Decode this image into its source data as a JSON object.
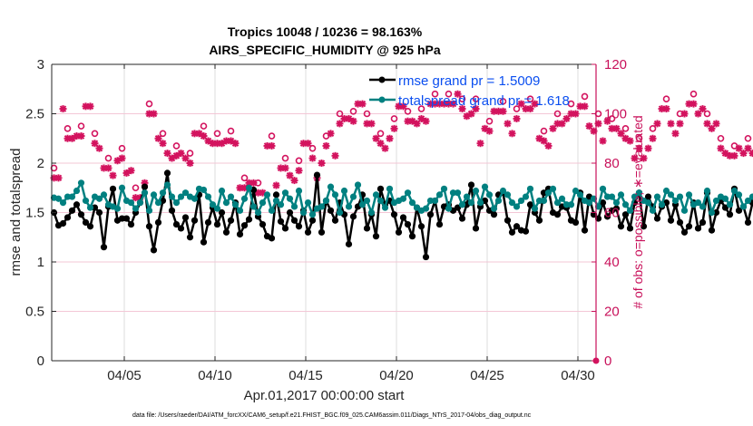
{
  "chart_data": {
    "type": "line",
    "title": [
      "Tropics 10048 / 10236 = 98.163%",
      "AIRS_SPECIFIC_HUMIDITY @ 925 hPa"
    ],
    "xlabel": "Apr.01,2017 00:00:00 start",
    "ylabel": "rmse and totalspread",
    "y2label": "# of obs: o=possible; ∗=evaluated",
    "footnote": "data file: /Users/raeder/DAI/ATM_forcXX/CAM6_setup/f.e21.FHIST_BGC.f09_025.CAM6assim.011/Diags_NTrS_2017-04/obs_diag_output.nc",
    "xlim_days": [
      1,
      31
    ],
    "ylim": [
      0,
      3
    ],
    "y2lim": [
      0,
      120
    ],
    "xticks": [
      {
        "day": 5,
        "label": "04/05"
      },
      {
        "day": 10,
        "label": "04/10"
      },
      {
        "day": 15,
        "label": "04/15"
      },
      {
        "day": 20,
        "label": "04/20"
      },
      {
        "day": 25,
        "label": "04/25"
      },
      {
        "day": 30,
        "label": "04/30"
      }
    ],
    "yticks": [
      {
        "value": 0,
        "label": "0"
      },
      {
        "value": 0.5,
        "label": "0.5"
      },
      {
        "value": 1,
        "label": "1"
      },
      {
        "value": 1.5,
        "label": "1.5"
      },
      {
        "value": 2,
        "label": "2"
      },
      {
        "value": 2.5,
        "label": "2.5"
      },
      {
        "value": 3,
        "label": "3"
      }
    ],
    "y2ticks": [
      {
        "value": 0,
        "label": "0"
      },
      {
        "value": 20,
        "label": "20"
      },
      {
        "value": 40,
        "label": "40"
      },
      {
        "value": 60,
        "label": "60"
      },
      {
        "value": 80,
        "label": "80"
      },
      {
        "value": 100,
        "label": "100"
      },
      {
        "value": 120,
        "label": "120"
      }
    ],
    "grid": "x-vertical gray, y2-horizontal pink",
    "legend_position": "top-right",
    "colors": {
      "rmse": "#000000",
      "totalspread": "#008080",
      "obs": "#d3135e",
      "legend_text": "#0a4ef0"
    },
    "series": [
      {
        "name": "rmse grand pr = 1.5009",
        "key": "rmse",
        "x_start_day": 1.125,
        "x_step_day": 0.25,
        "values": [
          1.5,
          1.37,
          1.39,
          1.45,
          1.52,
          1.58,
          1.48,
          1.4,
          1.36,
          1.55,
          1.5,
          1.15,
          1.56,
          1.74,
          1.42,
          1.44,
          1.44,
          1.38,
          1.5,
          1.6,
          1.76,
          1.36,
          1.12,
          1.4,
          1.62,
          1.9,
          1.52,
          1.38,
          1.34,
          1.45,
          1.25,
          1.42,
          1.68,
          1.2,
          1.4,
          1.55,
          1.38,
          1.5,
          1.3,
          1.42,
          1.6,
          1.28,
          1.37,
          1.43,
          1.73,
          1.46,
          1.38,
          1.26,
          1.24,
          1.68,
          1.41,
          1.34,
          1.5,
          1.42,
          1.36,
          1.52,
          1.3,
          1.42,
          1.88,
          1.3,
          1.62,
          1.52,
          1.42,
          1.6,
          1.48,
          1.18,
          1.46,
          1.56,
          1.68,
          1.34,
          1.48,
          1.26,
          1.74,
          1.58,
          1.62,
          1.48,
          1.3,
          1.45,
          1.38,
          1.26,
          1.55,
          1.36,
          1.05,
          1.48,
          1.62,
          1.38,
          1.56,
          1.58,
          1.52,
          1.55,
          1.44,
          1.58,
          1.78,
          1.34,
          1.56,
          1.62,
          1.52,
          1.48,
          1.68,
          1.7,
          1.42,
          1.3,
          1.36,
          1.32,
          1.31,
          1.58,
          1.5,
          1.42,
          1.7,
          1.74,
          1.5,
          1.48,
          1.56,
          1.55,
          1.42,
          1.4,
          1.7,
          1.32,
          1.66,
          1.48,
          1.44,
          1.6,
          1.46,
          1.52,
          1.54,
          1.36,
          1.48,
          1.34,
          1.6,
          1.7,
          1.36,
          1.66,
          1.56,
          1.44,
          1.56,
          1.6,
          1.42,
          1.58,
          1.4,
          1.3,
          1.36,
          1.6,
          1.34,
          1.4,
          1.7,
          1.32,
          1.5,
          1.62,
          1.55,
          1.48,
          1.74,
          1.52,
          1.56,
          1.4,
          1.6,
          1.68,
          1.58,
          1.62,
          1.5,
          1.44,
          1.56,
          1.4,
          1.68,
          1.44,
          1.38,
          1.5,
          1.32,
          1.26,
          1.55,
          1.4,
          1.48,
          1.62,
          1.44,
          1.34,
          1.58,
          1.6,
          1.52,
          1.32,
          1.3,
          1.34,
          1.42,
          1.55,
          1.44,
          1.36,
          1.6,
          1.28,
          1.56,
          1.45,
          1.62,
          1.34,
          1.6,
          1.52,
          1.65,
          1.44,
          1.58,
          1.3,
          1.6,
          1.4,
          1.48,
          1.32,
          1.32,
          1.46,
          1.36,
          1.6,
          1.55,
          1.58,
          1.48,
          1.5,
          1.42,
          1.34,
          1.52,
          1.58,
          1.4,
          1.3,
          1.66,
          1.52,
          1.6,
          1.42,
          1.48,
          1.22,
          1.53
        ]
      },
      {
        "name": "totalspread grand pr = 1.618",
        "key": "totalspread",
        "x_start_day": 1.125,
        "x_step_day": 0.25,
        "values": [
          1.65,
          1.64,
          1.6,
          1.66,
          1.66,
          1.72,
          1.8,
          1.62,
          1.55,
          1.66,
          1.64,
          1.68,
          1.58,
          1.56,
          1.54,
          1.75,
          1.62,
          1.6,
          1.54,
          1.6,
          1.7,
          1.52,
          1.68,
          1.6,
          1.7,
          1.78,
          1.66,
          1.6,
          1.66,
          1.7,
          1.66,
          1.64,
          1.74,
          1.73,
          1.66,
          1.58,
          1.54,
          1.72,
          1.6,
          1.66,
          1.58,
          1.52,
          1.64,
          1.75,
          1.56,
          1.5,
          1.6,
          1.68,
          1.52,
          1.62,
          1.58,
          1.7,
          1.64,
          1.56,
          1.72,
          1.5,
          1.6,
          1.48,
          1.54,
          1.56,
          1.62,
          1.76,
          1.68,
          1.5,
          1.72,
          1.56,
          1.66,
          1.78,
          1.58,
          1.62,
          1.5,
          1.68,
          1.62,
          1.55,
          1.74,
          1.6,
          1.62,
          1.64,
          1.7,
          1.6,
          1.55,
          1.52,
          1.54,
          1.62,
          1.62,
          1.68,
          1.74,
          1.54,
          1.7,
          1.7,
          1.58,
          1.66,
          1.6,
          1.72,
          1.6,
          1.76,
          1.68,
          1.54,
          1.62,
          1.72,
          1.68,
          1.6,
          1.56,
          1.62,
          1.66,
          1.74,
          1.54,
          1.62,
          1.62,
          1.7,
          1.74,
          1.6,
          1.64,
          1.58,
          1.58,
          1.72,
          1.68,
          1.62,
          1.6,
          1.64,
          1.56,
          1.74,
          1.66,
          1.66,
          1.6,
          1.68,
          1.58,
          1.52,
          1.66,
          1.7,
          1.62,
          1.6,
          1.52,
          1.66,
          1.58,
          1.72,
          1.68,
          1.62,
          1.66,
          1.52,
          1.68,
          1.58,
          1.6,
          1.56,
          1.72,
          1.5,
          1.62,
          1.66,
          1.64,
          1.58,
          1.72,
          1.68,
          1.56,
          1.62,
          1.66,
          1.74,
          1.62,
          1.52,
          1.68,
          1.74,
          1.64,
          1.6,
          1.74,
          1.62,
          1.68,
          1.62,
          1.56,
          1.68,
          1.72,
          1.64,
          1.56,
          1.6,
          1.7,
          1.62,
          1.64,
          1.7,
          1.58,
          1.64,
          1.62,
          1.68,
          1.62,
          1.64,
          1.66,
          1.58,
          1.68,
          1.6,
          1.7,
          1.62,
          1.66,
          1.48,
          1.7,
          1.6,
          1.72,
          1.6,
          1.7,
          1.54,
          1.66,
          1.7,
          1.62,
          1.6,
          1.68,
          1.64,
          1.56,
          1.68,
          1.72,
          1.68,
          1.6,
          1.74,
          1.62,
          1.66,
          1.58,
          1.62,
          1.72,
          1.56,
          1.76,
          1.62,
          1.7,
          1.78,
          1.5,
          1.56
        ]
      },
      {
        "name": "obs possible (o) / evaluated (*)",
        "key": "obs",
        "axis": "right",
        "x_start_day": 1.125,
        "x_step_day": 0.25,
        "possible": [
          74,
          74,
          102,
          90,
          90,
          91,
          91,
          103,
          103,
          88,
          86,
          78,
          78,
          75,
          81,
          82,
          76,
          77,
          66,
          66,
          72,
          100,
          100,
          90,
          88,
          84,
          82,
          83,
          84,
          82,
          80,
          92,
          92,
          91,
          89,
          88,
          88,
          88,
          89,
          89,
          88,
          70,
          70,
          72,
          72,
          68,
          68,
          87,
          87,
          71,
          78,
          78,
          75,
          73,
          77,
          88,
          88,
          82,
          74,
          80,
          87,
          92,
          83,
          96,
          98,
          98,
          97,
          104,
          104,
          96,
          96,
          90,
          88,
          86,
          90,
          94,
          103,
          103,
          97,
          97,
          96,
          98,
          97,
          104,
          104,
          104,
          104,
          104,
          104,
          108,
          102,
          99,
          100,
          102,
          88,
          94,
          93,
          101,
          101,
          101,
          96,
          92,
          98,
          104,
          102,
          102,
          104,
          90,
          89,
          87,
          94,
          96,
          96,
          98,
          100,
          100,
          103,
          103,
          95,
          93,
          96,
          89,
          97,
          94,
          94,
          92,
          90,
          89,
          82,
          86,
          82,
          86,
          90,
          96,
          102,
          102,
          96,
          92,
          96,
          100,
          104,
          104,
          100,
          102,
          96,
          94,
          96,
          86,
          84,
          83,
          83,
          86,
          84,
          86,
          84,
          78,
          80,
          84,
          82,
          84,
          80,
          84,
          86,
          88,
          90,
          89,
          94,
          92,
          96,
          90,
          84,
          84,
          86,
          86,
          84,
          82,
          82,
          82,
          86,
          86,
          82,
          80,
          80,
          82,
          84,
          80,
          85,
          84,
          80,
          84,
          82,
          86,
          86,
          82,
          84,
          82,
          80,
          86,
          88,
          82,
          80,
          84,
          82,
          90,
          82,
          80,
          84,
          86,
          86,
          78,
          80,
          76,
          82,
          82,
          88,
          84,
          72,
          74,
          80,
          82
        ]
      }
    ]
  }
}
